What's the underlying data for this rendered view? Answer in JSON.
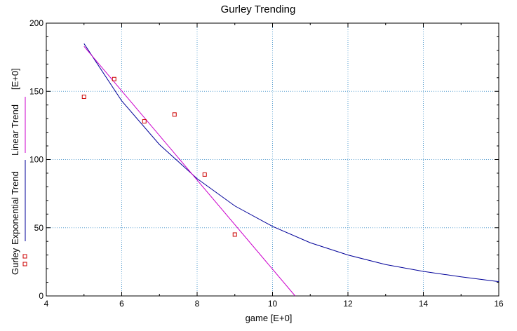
{
  "chart_data": {
    "type": "scatter",
    "title": "Gurley Trending",
    "xlabel": "game  [E+0]",
    "ylabel_prefix": "Gurley",
    "ylabel_unit": "[E+0]",
    "xlim": [
      4,
      16
    ],
    "ylim": [
      0,
      200
    ],
    "x_ticks": [
      "4",
      "6",
      "8",
      "10",
      "12",
      "14",
      "16"
    ],
    "y_ticks": [
      "0",
      "50",
      "100",
      "150",
      "200"
    ],
    "grid": true,
    "legend_placement": "left, vertical along y-axis",
    "series": [
      {
        "name": "Gurley",
        "kind": "scatter",
        "marker": "square",
        "color": "#cc0000",
        "x": [
          5.0,
          5.8,
          6.6,
          7.4,
          8.2,
          9.0
        ],
        "y": [
          146,
          159,
          128,
          133,
          89,
          45
        ]
      },
      {
        "name": "Exponential Trend",
        "kind": "line",
        "color": "#000099",
        "x": [
          5,
          6,
          7,
          8,
          9,
          10,
          11,
          12,
          13,
          14,
          15,
          16
        ],
        "y": [
          185,
          143,
          111,
          86,
          66,
          51,
          39,
          30,
          23,
          18,
          14,
          10.5
        ]
      },
      {
        "name": "Linear Trend",
        "kind": "line",
        "color": "#cc00cc",
        "x": [
          5,
          10.6
        ],
        "y": [
          183,
          0
        ]
      }
    ]
  }
}
